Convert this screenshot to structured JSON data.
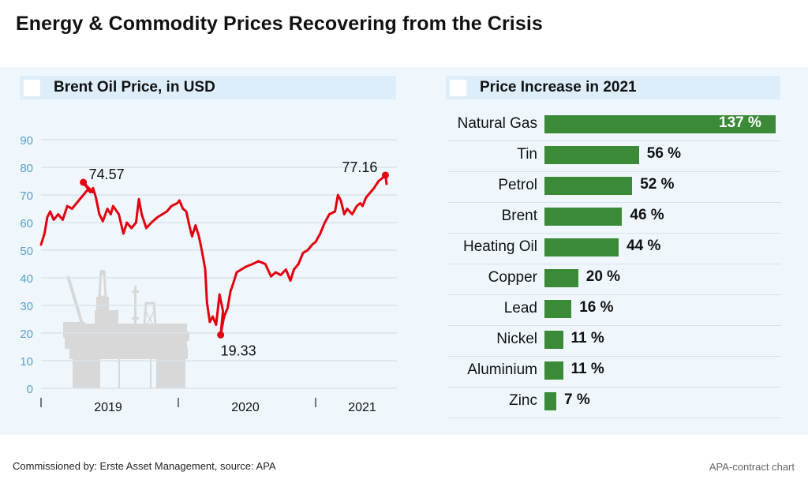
{
  "title": "Energy & Commodity Prices Recovering from the Crisis",
  "footer": {
    "left": "Commissioned by: Erste Asset Management, source: APA",
    "right": "APA-contract chart"
  },
  "colors": {
    "line": "#e3000f",
    "bar": "#3a8a38",
    "axis_label": "#5a9ec9",
    "panel_bg": "#eff7fd",
    "header_bg": "#ddeefa",
    "rig": "#d8d8d8"
  },
  "chart_data": [
    {
      "type": "line",
      "title": "Brent Oil Price, in USD",
      "xlabel": "",
      "ylabel": "",
      "ylim": [
        0,
        90
      ],
      "yticks": [
        0,
        10,
        20,
        30,
        40,
        50,
        60,
        70,
        80,
        90
      ],
      "ytick_labels": [
        "0",
        "10",
        "20",
        "30",
        "40",
        "50",
        "60",
        "70",
        "80",
        "90"
      ],
      "x_unit": "months since Jan 2019",
      "xlim": [
        0,
        31
      ],
      "xticks": [
        0,
        12,
        24
      ],
      "xtick_labels": [
        "2019",
        "2020",
        "2021"
      ],
      "grid": true,
      "legend": "none",
      "decoration": "oil-rig silhouette",
      "series": [
        {
          "name": "Brent",
          "points": [
            [
              0.0,
              52
            ],
            [
              0.3,
              56
            ],
            [
              0.55,
              62
            ],
            [
              0.8,
              64
            ],
            [
              1.1,
              61
            ],
            [
              1.5,
              63
            ],
            [
              1.9,
              61
            ],
            [
              2.3,
              66
            ],
            [
              2.7,
              65
            ],
            [
              3.3,
              68
            ],
            [
              3.7,
              70
            ],
            [
              4.1,
              72
            ],
            [
              4.5,
              71
            ],
            [
              3.7,
              74.57
            ],
            [
              4.3,
              71
            ],
            [
              4.55,
              72.5
            ],
            [
              4.8,
              69
            ],
            [
              5.1,
              63
            ],
            [
              5.4,
              60.5
            ],
            [
              5.8,
              65
            ],
            [
              6.1,
              63
            ],
            [
              6.3,
              66
            ],
            [
              6.8,
              63
            ],
            [
              7.2,
              56
            ],
            [
              7.5,
              60
            ],
            [
              7.9,
              58
            ],
            [
              8.3,
              60
            ],
            [
              8.55,
              68.5
            ],
            [
              8.8,
              63
            ],
            [
              9.2,
              58
            ],
            [
              9.65,
              60
            ],
            [
              10.2,
              62
            ],
            [
              10.6,
              63
            ],
            [
              11.0,
              64
            ],
            [
              11.4,
              66
            ],
            [
              11.9,
              67
            ],
            [
              12.1,
              68
            ],
            [
              12.4,
              65
            ],
            [
              12.7,
              64
            ],
            [
              12.96,
              59
            ],
            [
              13.2,
              55
            ],
            [
              13.5,
              59
            ],
            [
              13.8,
              55
            ],
            [
              14.1,
              49
            ],
            [
              14.35,
              43
            ],
            [
              14.5,
              31
            ],
            [
              14.75,
              24
            ],
            [
              15.0,
              26
            ],
            [
              15.3,
              23
            ],
            [
              15.6,
              34
            ],
            [
              15.9,
              28
            ],
            [
              15.7,
              19.33
            ],
            [
              16.0,
              26
            ],
            [
              16.3,
              29
            ],
            [
              16.55,
              35
            ],
            [
              16.8,
              38
            ],
            [
              17.1,
              42
            ],
            [
              17.5,
              43
            ],
            [
              17.9,
              44
            ],
            [
              18.5,
              45
            ],
            [
              19.0,
              46
            ],
            [
              19.6,
              45
            ],
            [
              20.1,
              40.5
            ],
            [
              20.5,
              42
            ],
            [
              20.95,
              41
            ],
            [
              21.4,
              43
            ],
            [
              21.8,
              39
            ],
            [
              22.1,
              43
            ],
            [
              22.5,
              45
            ],
            [
              22.9,
              49
            ],
            [
              23.3,
              50
            ],
            [
              23.7,
              52
            ],
            [
              24.0,
              53
            ],
            [
              24.4,
              56
            ],
            [
              24.8,
              60
            ],
            [
              25.2,
              63
            ],
            [
              25.7,
              64
            ],
            [
              25.95,
              70
            ],
            [
              26.2,
              68
            ],
            [
              26.5,
              63
            ],
            [
              26.75,
              65
            ],
            [
              27.2,
              63
            ],
            [
              27.6,
              66
            ],
            [
              27.9,
              67
            ],
            [
              28.1,
              66
            ],
            [
              28.4,
              69
            ],
            [
              28.7,
              70.5
            ],
            [
              29.1,
              72.5
            ],
            [
              29.5,
              75
            ],
            [
              29.8,
              76
            ],
            [
              30.1,
              77.16
            ],
            [
              30.2,
              74
            ]
          ]
        }
      ],
      "annotations": [
        {
          "label": "74.57",
          "x": 3.7,
          "y": 74.57,
          "marker": true
        },
        {
          "label": "19.33",
          "x": 15.7,
          "y": 19.33,
          "marker": true
        },
        {
          "label": "77.16",
          "x": 30.1,
          "y": 77.16,
          "marker": true
        }
      ]
    },
    {
      "type": "bar",
      "orientation": "horizontal",
      "title": "Price Increase in 2021",
      "xlabel": "",
      "ylabel": "",
      "unit": "%",
      "xlim": [
        0,
        137
      ],
      "grid": false,
      "legend": "none",
      "categories": [
        "Natural Gas",
        "Tin",
        "Petrol",
        "Brent",
        "Heating Oil",
        "Copper",
        "Lead",
        "Nickel",
        "Aluminium",
        "Zinc"
      ],
      "values": [
        137,
        56,
        52,
        46,
        44,
        20,
        16,
        11,
        11,
        7
      ],
      "value_labels": [
        "137 %",
        "56 %",
        "52 %",
        "46 %",
        "44 %",
        "20 %",
        "16 %",
        "11 %",
        "11 %",
        "7 %"
      ]
    }
  ]
}
